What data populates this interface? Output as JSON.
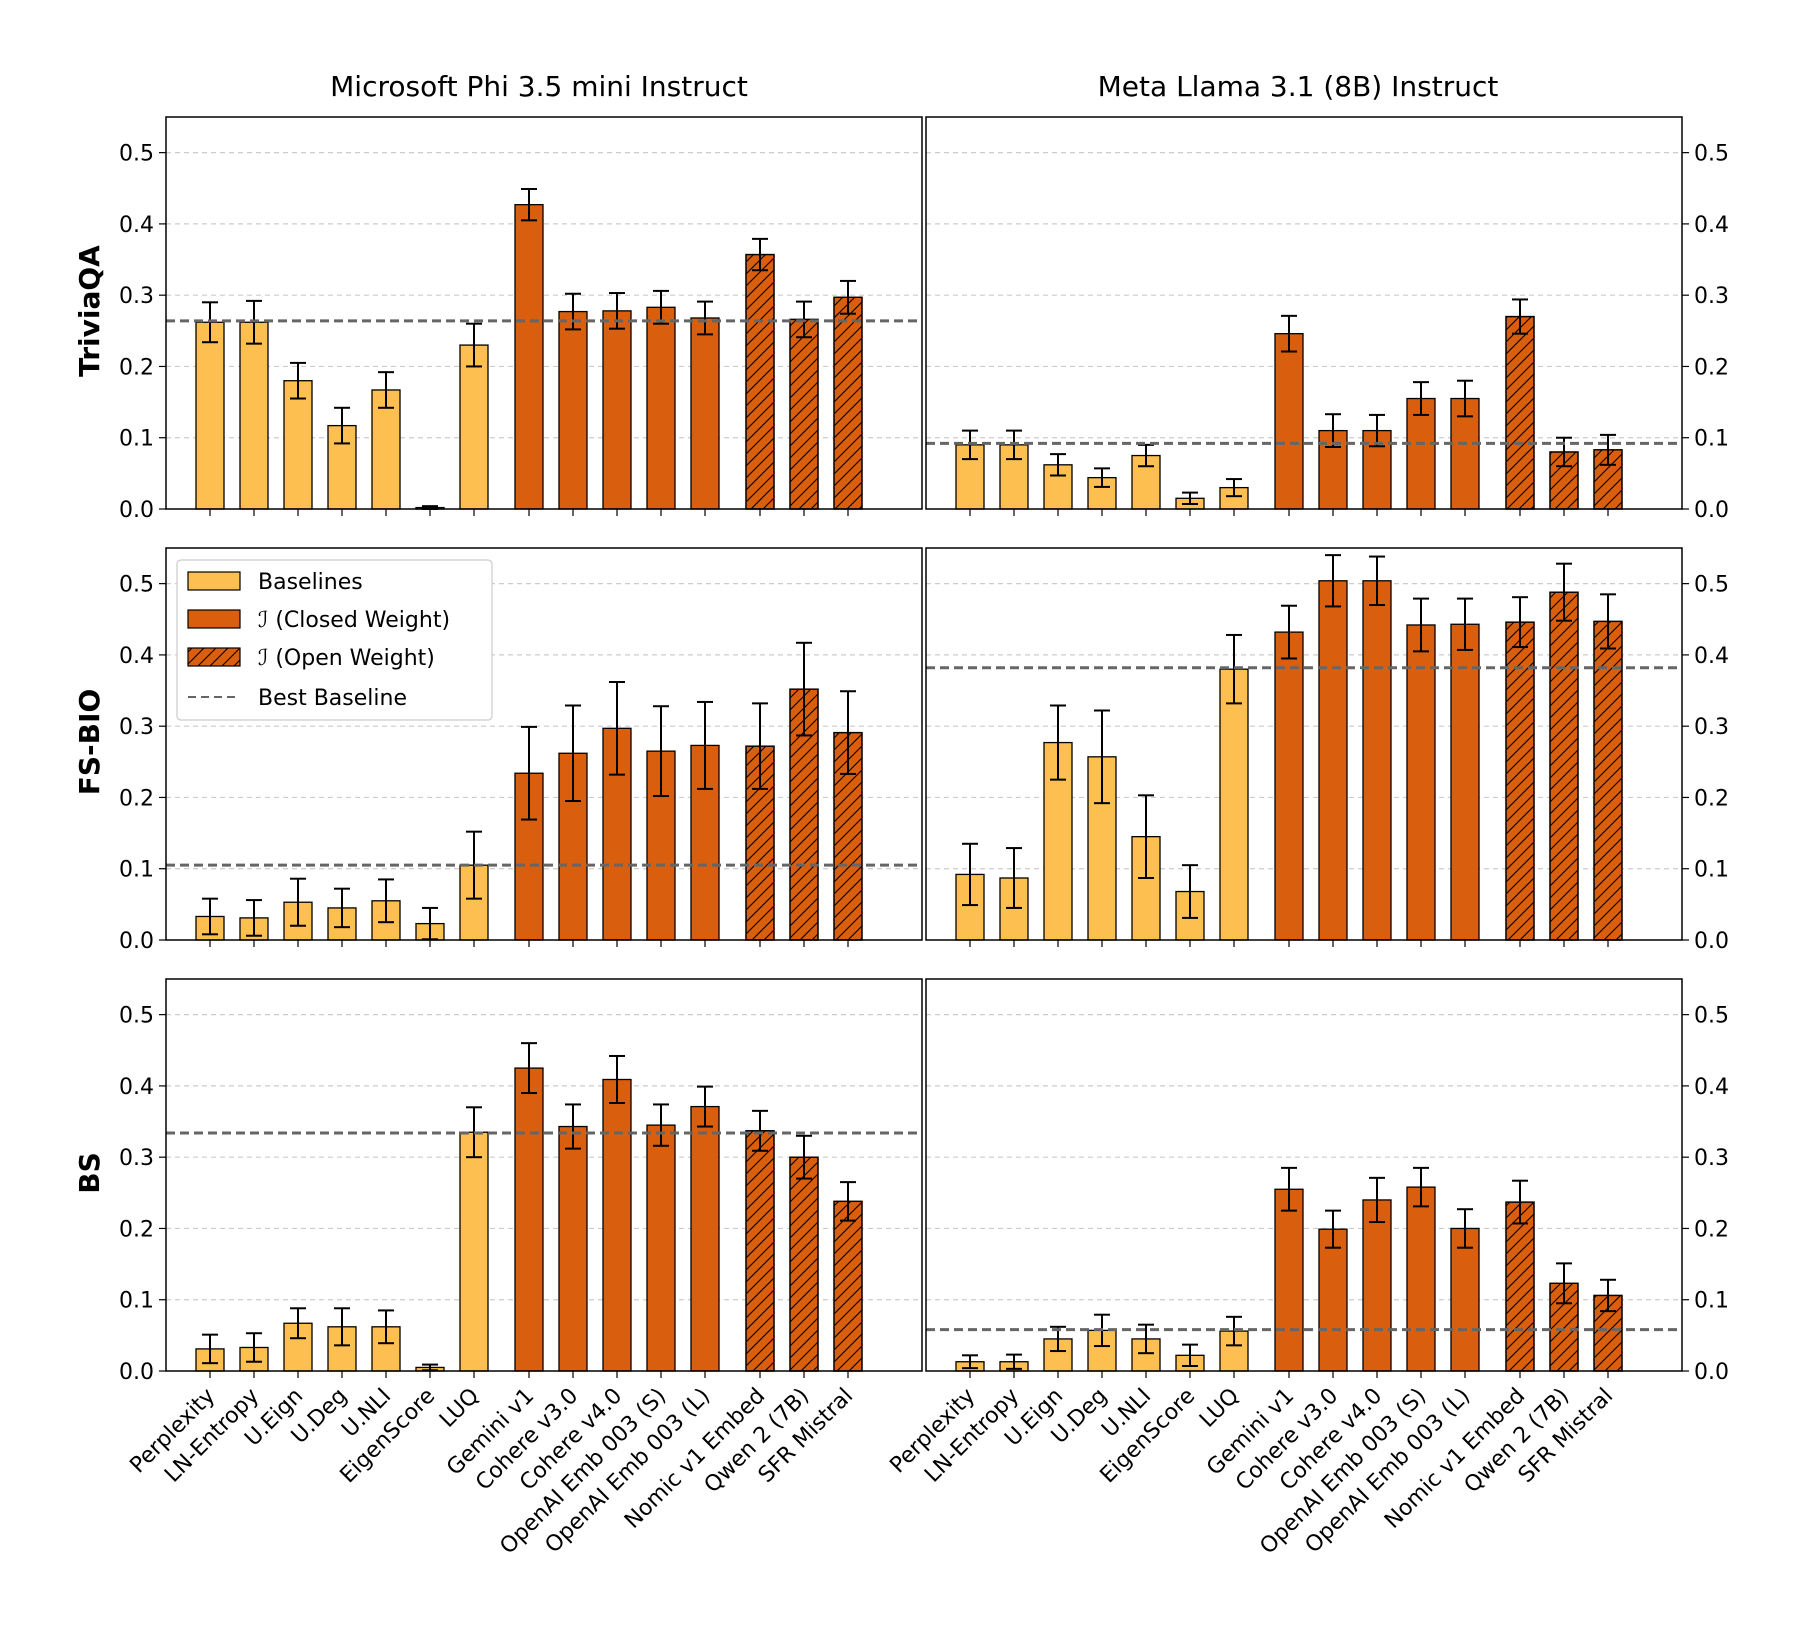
{
  "figure": {
    "columns": [
      "Microsoft Phi 3.5 mini Instruct",
      "Meta Llama 3.1 (8B) Instruct"
    ],
    "rows": [
      "TriviaQA",
      "FS-BIO",
      "BS"
    ]
  },
  "legend": {
    "baselines": "Baselines",
    "closed": "ℐ (Closed Weight)",
    "open": "ℐ (Open Weight)",
    "best": "Best Baseline"
  },
  "colors": {
    "baseline": "#fdbf4f",
    "method": "#d95f0e",
    "best_line": "#666666",
    "grid": "#cccccc"
  },
  "chart_data": {
    "type": "bar",
    "categories": [
      "Perplexity",
      "LN-Entropy",
      "U.Eign",
      "U.Deg",
      "U.NLI",
      "EigenScore",
      "LUQ",
      "Gemini v1",
      "Cohere v3.0",
      "Cohere v4.0",
      "OpenAI Emb 003 (S)",
      "OpenAI Emb 003 (L)",
      "Nomic v1 Embed",
      "Qwen 2 (7B)",
      "SFR Mistral"
    ],
    "groups": [
      "baseline",
      "baseline",
      "baseline",
      "baseline",
      "baseline",
      "baseline",
      "baseline",
      "closed",
      "closed",
      "closed",
      "closed",
      "closed",
      "open",
      "open",
      "open"
    ],
    "ylim": [
      0,
      0.55
    ],
    "yticks": [
      "0.0",
      "0.1",
      "0.2",
      "0.3",
      "0.4",
      "0.5"
    ],
    "grid": true,
    "legend_position": "upper-left of FS-BIO / Phi 3.5 panel",
    "panels": [
      {
        "row": "TriviaQA",
        "column": "Microsoft Phi 3.5 mini Instruct",
        "values": [
          0.262,
          0.262,
          0.18,
          0.117,
          0.167,
          0.002,
          0.23,
          0.427,
          0.277,
          0.278,
          0.283,
          0.268,
          0.357,
          0.266,
          0.297
        ],
        "errors": [
          0.028,
          0.03,
          0.025,
          0.025,
          0.025,
          0.002,
          0.03,
          0.022,
          0.025,
          0.025,
          0.023,
          0.023,
          0.022,
          0.025,
          0.023
        ],
        "best_baseline": 0.264
      },
      {
        "row": "TriviaQA",
        "column": "Meta Llama 3.1 (8B) Instruct",
        "values": [
          0.09,
          0.09,
          0.062,
          0.044,
          0.075,
          0.015,
          0.03,
          0.246,
          0.11,
          0.11,
          0.155,
          0.155,
          0.27,
          0.08,
          0.083
        ],
        "errors": [
          0.02,
          0.02,
          0.015,
          0.013,
          0.015,
          0.008,
          0.012,
          0.025,
          0.023,
          0.022,
          0.023,
          0.025,
          0.024,
          0.02,
          0.021
        ],
        "best_baseline": 0.092
      },
      {
        "row": "FS-BIO",
        "column": "Microsoft Phi 3.5 mini Instruct",
        "values": [
          0.033,
          0.031,
          0.053,
          0.045,
          0.055,
          0.023,
          0.105,
          0.234,
          0.262,
          0.297,
          0.265,
          0.273,
          0.272,
          0.352,
          0.291
        ],
        "errors": [
          0.025,
          0.025,
          0.033,
          0.027,
          0.03,
          0.022,
          0.047,
          0.065,
          0.067,
          0.065,
          0.063,
          0.061,
          0.06,
          0.065,
          0.058
        ],
        "best_baseline": 0.105
      },
      {
        "row": "FS-BIO",
        "column": "Meta Llama 3.1 (8B) Instruct",
        "values": [
          0.092,
          0.087,
          0.277,
          0.257,
          0.145,
          0.068,
          0.38,
          0.432,
          0.504,
          0.504,
          0.442,
          0.443,
          0.446,
          0.488,
          0.447
        ],
        "errors": [
          0.043,
          0.042,
          0.052,
          0.065,
          0.058,
          0.037,
          0.048,
          0.037,
          0.036,
          0.034,
          0.037,
          0.036,
          0.035,
          0.04,
          0.038
        ],
        "best_baseline": 0.382
      },
      {
        "row": "BS",
        "column": "Microsoft Phi 3.5 mini Instruct",
        "values": [
          0.031,
          0.033,
          0.067,
          0.062,
          0.062,
          0.005,
          0.335,
          0.425,
          0.343,
          0.409,
          0.345,
          0.371,
          0.337,
          0.3,
          0.238
        ],
        "errors": [
          0.02,
          0.02,
          0.021,
          0.026,
          0.023,
          0.004,
          0.035,
          0.035,
          0.031,
          0.033,
          0.029,
          0.028,
          0.028,
          0.03,
          0.027
        ],
        "best_baseline": 0.334
      },
      {
        "row": "BS",
        "column": "Meta Llama 3.1 (8B) Instruct",
        "values": [
          0.013,
          0.013,
          0.045,
          0.057,
          0.045,
          0.022,
          0.056,
          0.255,
          0.199,
          0.24,
          0.258,
          0.2,
          0.237,
          0.123,
          0.106
        ],
        "errors": [
          0.009,
          0.01,
          0.017,
          0.022,
          0.02,
          0.015,
          0.02,
          0.03,
          0.026,
          0.031,
          0.027,
          0.027,
          0.03,
          0.028,
          0.022
        ],
        "best_baseline": 0.058
      }
    ]
  }
}
